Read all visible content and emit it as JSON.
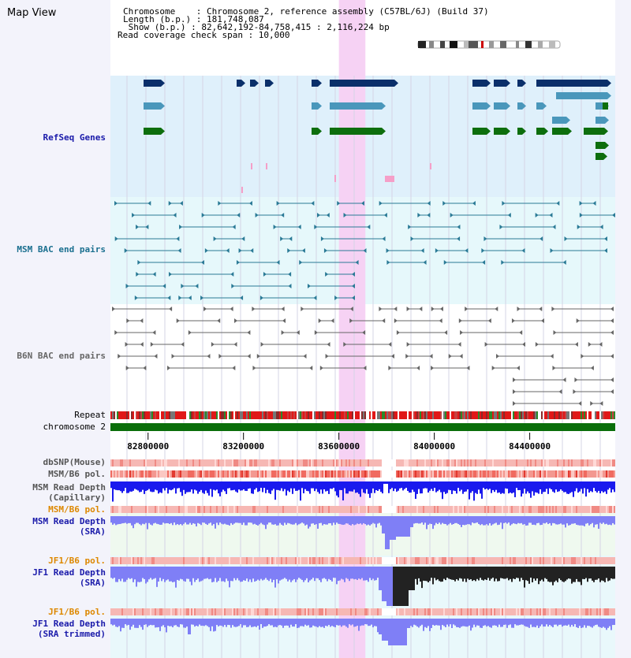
{
  "view_title": "Map View",
  "info": {
    "chromosome_line": "Chromosome    : Chromosome 2, reference assembly (C57BL/6J) (Build 37)",
    "length_line": "Length (b.p.) : 181,748,087",
    "show_line": " Show (b.p.) : 82,642,192-84,758,415 : 2,116,224 bp",
    "coverage_line": "Read coverage check span : 10,000"
  },
  "tracks": {
    "refseq": "RefSeq Genes",
    "msm_bac": "MSM BAC end pairs",
    "b6n_bac": "B6N BAC end pairs",
    "repeat": "Repeat",
    "chromosome": "chromosome 2",
    "dbsnp": "dbSNP(Mouse)",
    "msm_b6_pol_1": "MSM/B6 pol.",
    "msm_depth_cap_1": "MSM Read Depth",
    "msm_depth_cap_2": "(Capillary)",
    "msm_b6_pol_2": "MSM/B6 pol.",
    "msm_depth_sra_1": "MSM Read Depth",
    "msm_depth_sra_2": "(SRA)",
    "jf1_pol_1": "JF1/B6 pol.",
    "jf1_depth_1": "JF1 Read Depth",
    "jf1_depth_2": "(SRA)",
    "jf1_pol_2": "JF1/B6 pol.",
    "jf1_trim_1": "JF1 Read Depth",
    "jf1_trim_2": "(SRA trimmed)"
  },
  "axis": {
    "ticks": [
      "82800000",
      "83200000",
      "83600000",
      "84000000",
      "84400000"
    ],
    "range": [
      82642192,
      84758415
    ]
  },
  "highlight_region": [
    83600000,
    83711000
  ],
  "colors": {
    "refseq_bg": "#dff0fb",
    "msm_bg": "#e6f8fb",
    "highlight": "#f6d2f4",
    "gene_dark": "#0a2f6a",
    "gene_mid": "#4a97bb",
    "gene_green": "#0d6e0d",
    "msm_line": "#2a7a96",
    "b6n_line": "#666666",
    "chromosome_bar": "#0a6e0a",
    "depth_blue": "#1a1aee",
    "depth_light": "#7f7ff6",
    "label_blue": "#1a1aaa",
    "label_orange": "#dd8800"
  }
}
